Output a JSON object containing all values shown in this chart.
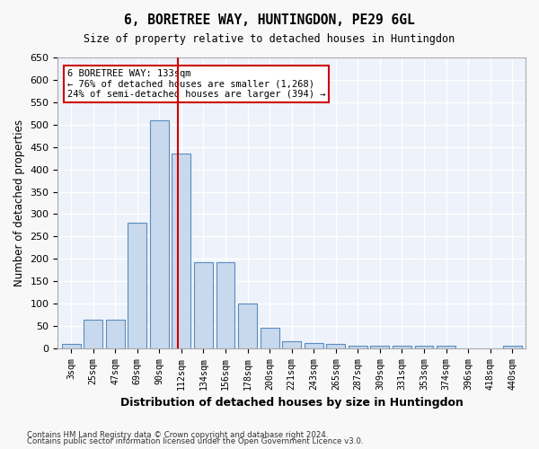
{
  "title": "6, BORETREE WAY, HUNTINGDON, PE29 6GL",
  "subtitle": "Size of property relative to detached houses in Huntingdon",
  "xlabel": "Distribution of detached houses by size in Huntingdon",
  "ylabel": "Number of detached properties",
  "bar_color": "#c9d9ed",
  "bar_edge_color": "#5b8cbf",
  "background_color": "#eef2fa",
  "grid_color": "#ffffff",
  "categories": [
    "3sqm",
    "25sqm",
    "47sqm",
    "69sqm",
    "90sqm",
    "112sqm",
    "134sqm",
    "156sqm",
    "178sqm",
    "200sqm",
    "221sqm",
    "243sqm",
    "265sqm",
    "287sqm",
    "309sqm",
    "331sqm",
    "353sqm",
    "374sqm",
    "396sqm",
    "418sqm",
    "440sqm"
  ],
  "values": [
    10,
    65,
    65,
    280,
    510,
    435,
    193,
    193,
    100,
    47,
    16,
    12,
    10,
    6,
    5,
    5,
    5,
    5,
    0,
    0,
    5
  ],
  "ylim": [
    0,
    650
  ],
  "yticks": [
    0,
    50,
    100,
    150,
    200,
    250,
    300,
    350,
    400,
    450,
    500,
    550,
    600,
    650
  ],
  "ref_line_x": 4.85,
  "annotation_title": "6 BORETREE WAY: 133sqm",
  "annotation_line1": "← 76% of detached houses are smaller (1,268)",
  "annotation_line2": "24% of semi-detached houses are larger (394) →",
  "annotation_box_color": "#ffffff",
  "annotation_border_color": "#cc0000",
  "ref_line_color": "#cc0000",
  "footer1": "Contains HM Land Registry data © Crown copyright and database right 2024.",
  "footer2": "Contains public sector information licensed under the Open Government Licence v3.0."
}
